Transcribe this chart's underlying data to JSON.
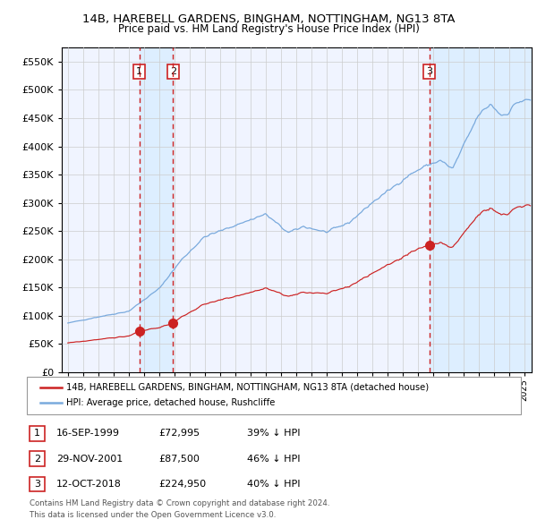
{
  "title1": "14B, HAREBELL GARDENS, BINGHAM, NOTTINGHAM, NG13 8TA",
  "title2": "Price paid vs. HM Land Registry's House Price Index (HPI)",
  "legend_line1": "14B, HAREBELL GARDENS, BINGHAM, NOTTINGHAM, NG13 8TA (detached house)",
  "legend_line2": "HPI: Average price, detached house, Rushcliffe",
  "transactions": [
    {
      "num": 1,
      "date": "16-SEP-1999",
      "year": 1999.71,
      "price": "£72,995",
      "pct": "39% ↓ HPI"
    },
    {
      "num": 2,
      "date": "29-NOV-2001",
      "year": 2001.91,
      "price": "£87,500",
      "pct": "46% ↓ HPI"
    },
    {
      "num": 3,
      "date": "12-OCT-2018",
      "year": 2018.78,
      "price": "£224,950",
      "pct": "40% ↓ HPI"
    }
  ],
  "footnote1": "Contains HM Land Registry data © Crown copyright and database right 2024.",
  "footnote2": "This data is licensed under the Open Government Licence v3.0.",
  "hpi_color": "#7aaadd",
  "price_color": "#cc2222",
  "vline_color": "#cc2222",
  "shade_color": "#ddeeff",
  "grid_color": "#cccccc",
  "bg_color": "#f0f4ff",
  "fig_bg": "#ffffff",
  "ylim": [
    0,
    575000
  ],
  "yticks": [
    0,
    50000,
    100000,
    150000,
    200000,
    250000,
    300000,
    350000,
    400000,
    450000,
    500000,
    550000
  ],
  "xlim_start": 1994.6,
  "xlim_end": 2025.5,
  "hpi_seed": 42,
  "price_seed": 99
}
